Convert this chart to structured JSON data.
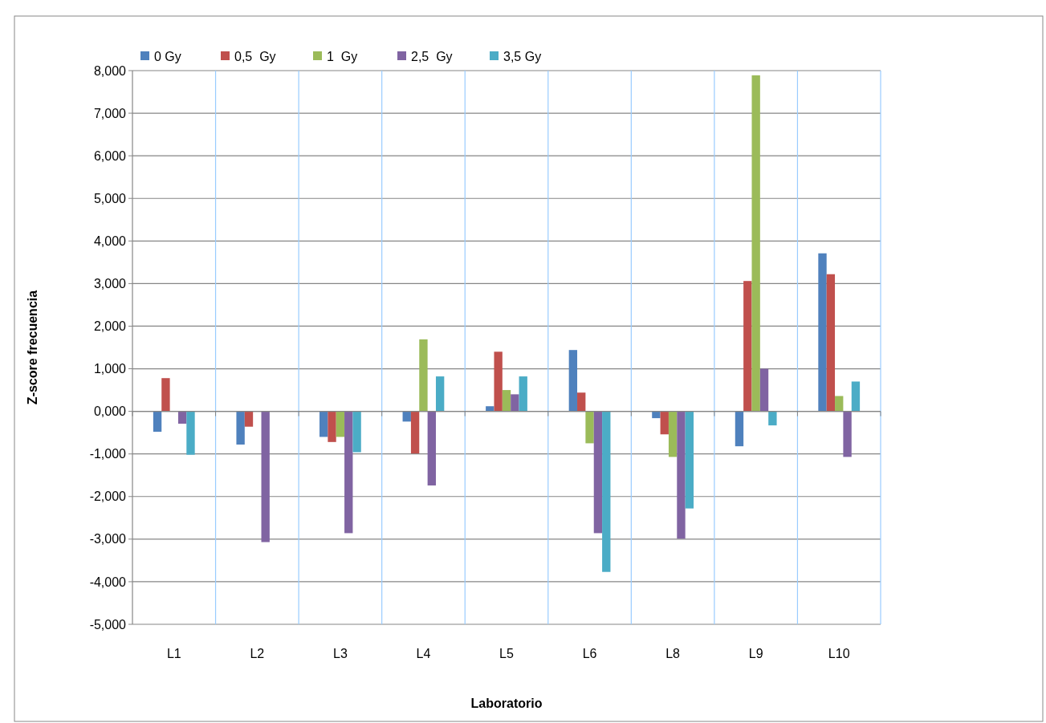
{
  "chart_data": {
    "type": "bar",
    "xlabel": "Laboratorio",
    "ylabel": "Z-score frecuencia",
    "categories": [
      "L1",
      "L2",
      "L3",
      "L4",
      "L5",
      "L6",
      "L8",
      "L9",
      "L10"
    ],
    "series": [
      {
        "name": "0 Gy",
        "color": "#4f81bd",
        "values": [
          -0.48,
          -0.78,
          -0.6,
          -0.24,
          0.12,
          1.44,
          -0.16,
          -0.82,
          3.71
        ]
      },
      {
        "name": "0,5  Gy",
        "color": "#c0504d",
        "values": [
          0.78,
          -0.36,
          -0.72,
          -0.99,
          1.4,
          0.44,
          -0.54,
          3.06,
          3.22
        ]
      },
      {
        "name": "1  Gy",
        "color": "#9bbb59",
        "values": [
          null,
          null,
          -0.6,
          1.69,
          0.5,
          -0.75,
          -1.07,
          7.89,
          0.36
        ]
      },
      {
        "name": "2,5  Gy",
        "color": "#8064a2",
        "values": [
          -0.29,
          -3.07,
          -2.86,
          -1.74,
          0.4,
          -2.86,
          -2.99,
          1.0,
          -1.07
        ]
      },
      {
        "name": "3,5 Gy",
        "color": "#4bacc6",
        "values": [
          -1.02,
          null,
          -0.96,
          0.82,
          0.82,
          -3.77,
          -2.28,
          -0.33,
          0.7
        ]
      }
    ],
    "ylim": [
      -5,
      8
    ],
    "yticks": [
      {
        "value": -5,
        "label": "-5,000"
      },
      {
        "value": -4,
        "label": "-4,000"
      },
      {
        "value": -3,
        "label": "-3,000"
      },
      {
        "value": -2,
        "label": "-2,000"
      },
      {
        "value": -1,
        "label": "-1,000"
      },
      {
        "value": 0,
        "label": "0,000"
      },
      {
        "value": 1,
        "label": "1,000"
      },
      {
        "value": 2,
        "label": "2,000"
      },
      {
        "value": 3,
        "label": "3,000"
      },
      {
        "value": 4,
        "label": "4,000"
      },
      {
        "value": 5,
        "label": "5,000"
      },
      {
        "value": 6,
        "label": "6,000"
      },
      {
        "value": 7,
        "label": "7,000"
      },
      {
        "value": 8,
        "label": "8,000"
      }
    ],
    "grid": true,
    "legend": "top left"
  }
}
